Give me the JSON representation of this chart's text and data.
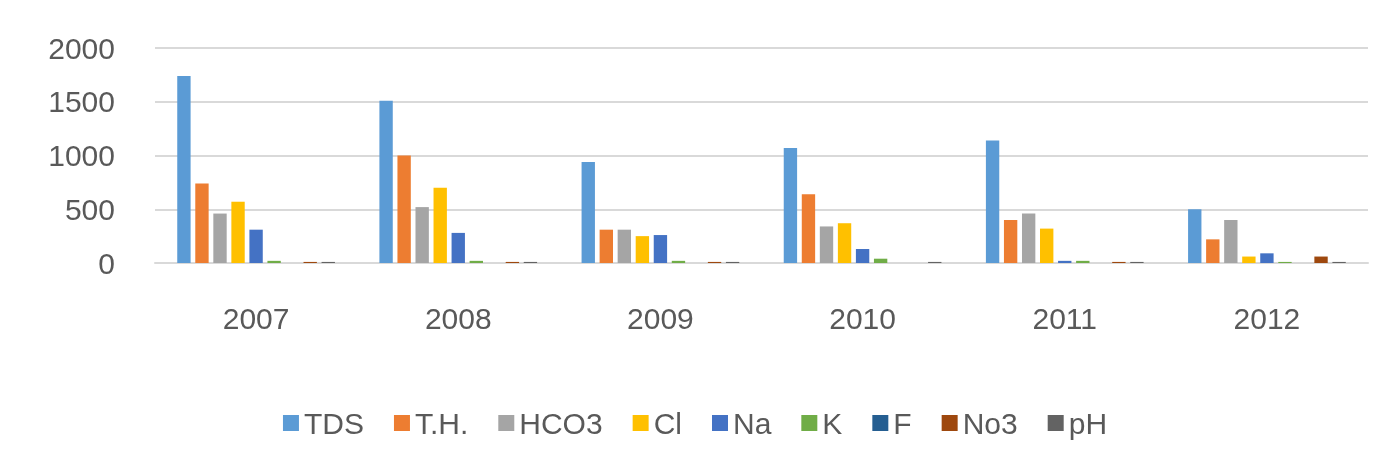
{
  "chart_data": {
    "type": "bar",
    "categories": [
      "2007",
      "2008",
      "2009",
      "2010",
      "2011",
      "2012"
    ],
    "series": [
      {
        "name": "TDS",
        "color": "#5b9bd5",
        "values": [
          1740,
          1510,
          940,
          1070,
          1140,
          500
        ]
      },
      {
        "name": "T.H.",
        "color": "#ed7d31",
        "values": [
          740,
          1000,
          310,
          640,
          400,
          220
        ]
      },
      {
        "name": "HCO3",
        "color": "#a5a5a5",
        "values": [
          460,
          520,
          310,
          340,
          460,
          400
        ]
      },
      {
        "name": "Cl",
        "color": "#ffc000",
        "values": [
          570,
          700,
          250,
          370,
          320,
          60
        ]
      },
      {
        "name": "Na",
        "color": "#4472c4",
        "values": [
          310,
          280,
          260,
          130,
          20,
          90
        ]
      },
      {
        "name": "K",
        "color": "#70ad47",
        "values": [
          20,
          20,
          20,
          40,
          20,
          10
        ]
      },
      {
        "name": "F",
        "color": "#255e91",
        "values": [
          null,
          null,
          null,
          null,
          null,
          null
        ]
      },
      {
        "name": "No3",
        "color": "#9e480e",
        "values": [
          10,
          10,
          10,
          null,
          10,
          60
        ]
      },
      {
        "name": "pH",
        "color": "#636363",
        "values": [
          10,
          10,
          10,
          10,
          10,
          10
        ]
      }
    ],
    "ylim": [
      0,
      2000
    ],
    "yticks": [
      0,
      500,
      1000,
      1500,
      2000
    ],
    "grid": "y",
    "legend": "bottom"
  }
}
